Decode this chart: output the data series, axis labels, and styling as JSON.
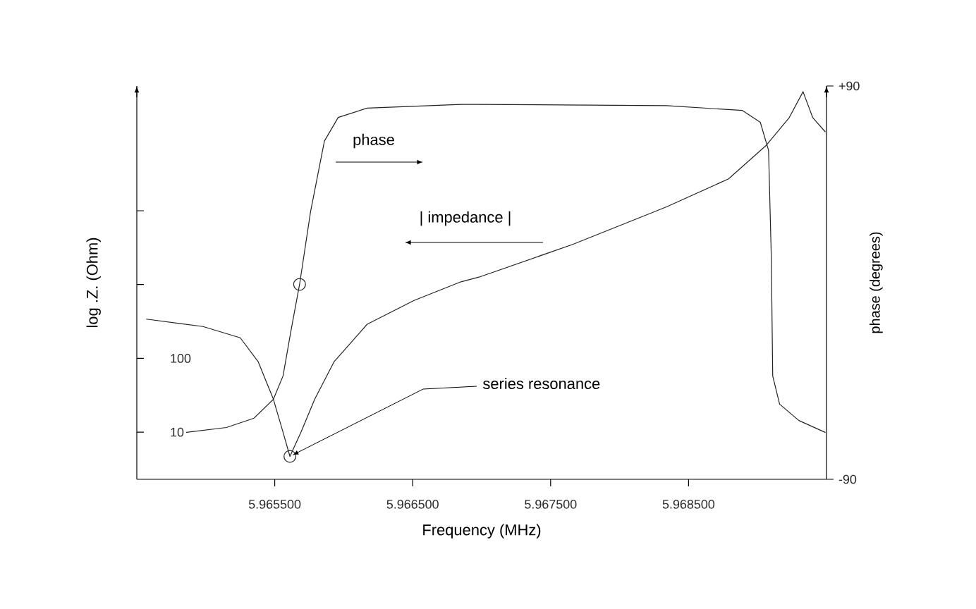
{
  "chart_data": {
    "type": "line",
    "xlabel": "Frequency (MHz)",
    "ylabel": "log .Z. (Ohm)",
    "y2label": "phase (degrees)",
    "log": "y",
    "marker": "none",
    "xlim": [
      5.9645,
      5.9695
    ],
    "xticks": [
      {
        "value": 5.9655,
        "label": "5.965500"
      },
      {
        "value": 5.9665,
        "label": "5.966500"
      },
      {
        "value": 5.9675,
        "label": "5.967500"
      },
      {
        "value": 5.9685,
        "label": "5.968500"
      }
    ],
    "ylim": [
      2.3,
      490000
    ],
    "yticks": [
      10,
      100,
      {
        "value": 1000,
        "label": null
      },
      {
        "value": 10000,
        "label": null
      }
    ],
    "y2lim": [
      -90,
      90
    ],
    "y2ticks": [
      {
        "value": 90,
        "label": "+90"
      },
      -90
    ],
    "series": [
      {
        "name": "| impedance |",
        "color": "#222222",
        "x": [
          5.96457,
          5.96498,
          5.96525,
          5.96538,
          5.96549,
          5.96556,
          5.96561,
          5.96569,
          5.96579,
          5.96593,
          5.96617,
          5.96651,
          5.96685,
          5.96698,
          5.96766,
          5.96834,
          5.96879,
          5.96906,
          5.96923,
          5.96933,
          5.9694,
          5.96949
        ],
        "values": [
          340,
          270,
          190,
          90,
          28,
          10,
          4.7,
          10,
          28,
          90,
          290,
          610,
          1090,
          1260,
          3500,
          11300,
          27000,
          76000,
          183000,
          410000,
          183000,
          118000
        ]
      },
      {
        "name": "phase",
        "color": "#222222",
        "axis": "y2",
        "x": [
          5.96486,
          5.96515,
          5.96535,
          5.96549,
          5.96556,
          5.96562,
          5.96568,
          5.96576,
          5.96586,
          5.96596,
          5.96617,
          5.96685,
          5.96698,
          5.96834,
          5.96889,
          5.96902,
          5.96908,
          5.9691,
          5.96911,
          5.96916,
          5.9693,
          5.96949
        ],
        "values": [
          -68.5,
          -66.3,
          -62,
          -53.4,
          -42.7,
          -21.2,
          -0.8,
          32.6,
          64.8,
          75.6,
          79.9,
          81.6,
          81.6,
          81,
          78.8,
          73.4,
          60.5,
          11.1,
          -42.7,
          -55.6,
          -63.1,
          -68.5
        ]
      },
      {
        "type": "scatter",
        "marker": "circle",
        "color": "#222222",
        "x": [
          5.96561
        ],
        "values": [
          4.7
        ]
      },
      {
        "type": "scatter",
        "marker": "circle",
        "color": "#222222",
        "axis": "y2",
        "x": [
          5.96568
        ],
        "values": [
          -0.8
        ]
      }
    ],
    "annotations": [
      {
        "text": "series resonance",
        "x": 5.96561,
        "y": 4.7
      }
    ]
  }
}
